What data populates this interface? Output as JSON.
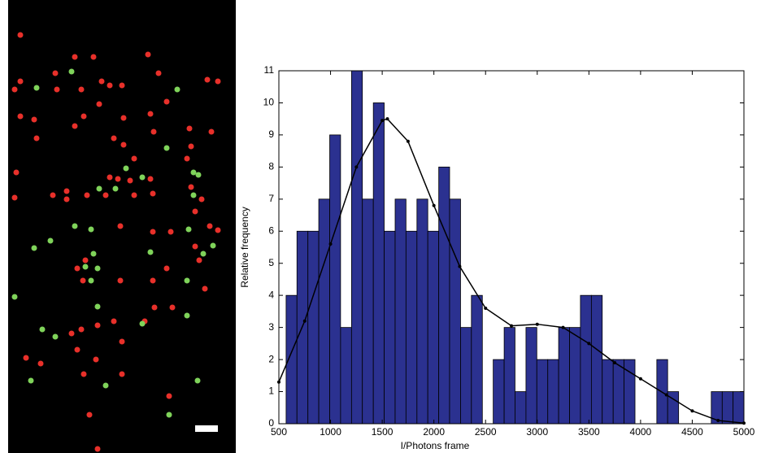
{
  "chart_data": {
    "type": "histogram",
    "xlabel": "I/Photons frame",
    "ylabel": "Relative frequency",
    "bins": [
      570,
      675,
      781,
      886,
      992,
      1097,
      1203,
      1308,
      1414,
      1519,
      1625,
      1730,
      1836,
      1941,
      2047,
      2152,
      2258,
      2363,
      2469,
      2574,
      2680,
      2785,
      2891,
      2996,
      3102,
      3207,
      3313,
      3418,
      3524,
      3629,
      3735,
      3840,
      3946,
      4051,
      4157,
      4262,
      4368,
      4473,
      4579,
      4684,
      4790,
      4895,
      5000
    ],
    "values": [
      4,
      6,
      6,
      7,
      9,
      3,
      11,
      7,
      10,
      6,
      7,
      6,
      7,
      6,
      8,
      7,
      3,
      4,
      0,
      2,
      3,
      1,
      3,
      2,
      2,
      3,
      3,
      4,
      4,
      2,
      2,
      2,
      0,
      0,
      2,
      1,
      0,
      0,
      0,
      1,
      1,
      1
    ],
    "color": "#2b3190",
    "fit": {
      "color": "#000000",
      "x": [
        500,
        750,
        1000,
        1250,
        1500,
        1550,
        1750,
        2000,
        2250,
        2500,
        2750,
        3000,
        3250,
        3500,
        3750,
        4000,
        4250,
        4500,
        4750,
        5000
      ],
      "values": [
        1.3,
        3.2,
        5.6,
        8.0,
        9.45,
        9.5,
        8.8,
        6.8,
        4.9,
        3.6,
        3.05,
        3.1,
        3.0,
        2.5,
        1.9,
        1.4,
        0.9,
        0.4,
        0.1,
        0.02
      ]
    },
    "xlim": [
      500,
      5000
    ],
    "xticks": [
      500,
      1000,
      1500,
      2000,
      2500,
      3000,
      3500,
      4000,
      4500,
      5000
    ],
    "ylim": [
      0,
      11
    ],
    "yticks": [
      0,
      1,
      2,
      3,
      4,
      5,
      6,
      7,
      8,
      9,
      10,
      11
    ]
  }
}
